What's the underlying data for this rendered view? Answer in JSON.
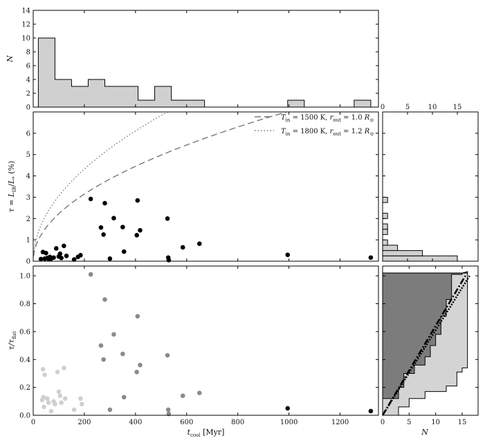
{
  "chart_data": [
    {
      "id": "hist_top",
      "type": "bar",
      "ylabel": "N",
      "ylim": [
        0,
        14
      ],
      "yticks": [
        0,
        2,
        4,
        6,
        8,
        10,
        12,
        14
      ],
      "bins": [
        {
          "x0": 20,
          "x1": 85,
          "n": 10
        },
        {
          "x0": 85,
          "x1": 150,
          "n": 4
        },
        {
          "x0": 150,
          "x1": 215,
          "n": 3
        },
        {
          "x0": 215,
          "x1": 280,
          "n": 4
        },
        {
          "x0": 280,
          "x1": 345,
          "n": 3
        },
        {
          "x0": 345,
          "x1": 410,
          "n": 3
        },
        {
          "x0": 410,
          "x1": 475,
          "n": 1
        },
        {
          "x0": 475,
          "x1": 540,
          "n": 3
        },
        {
          "x0": 540,
          "x1": 605,
          "n": 1
        },
        {
          "x0": 605,
          "x1": 670,
          "n": 1
        },
        {
          "x0": 670,
          "x1": 735,
          "n": 0
        },
        {
          "x0": 735,
          "x1": 800,
          "n": 0
        },
        {
          "x0": 800,
          "x1": 865,
          "n": 0
        },
        {
          "x0": 865,
          "x1": 930,
          "n": 0
        },
        {
          "x0": 930,
          "x1": 995,
          "n": 0
        },
        {
          "x0": 995,
          "x1": 1060,
          "n": 1
        },
        {
          "x0": 1060,
          "x1": 1125,
          "n": 0
        },
        {
          "x0": 1125,
          "x1": 1190,
          "n": 0
        },
        {
          "x0": 1190,
          "x1": 1255,
          "n": 0
        },
        {
          "x0": 1255,
          "x1": 1320,
          "n": 1
        }
      ],
      "fill": "#d0d0d0"
    },
    {
      "id": "scatter_mid",
      "type": "scatter",
      "xlim": [
        0,
        1350
      ],
      "ylim": [
        0,
        7
      ],
      "yticks": [
        0,
        1,
        2,
        3,
        4,
        5,
        6
      ],
      "ylabel": "τ = L_IR/L_* (%)",
      "ylabel_parts": {
        "lead": "τ = ",
        "L": "L",
        "IR": "IR",
        "star": "*",
        "tail": " (%)"
      },
      "points": [
        [
          30,
          0.1
        ],
        [
          38,
          0.43
        ],
        [
          45,
          0.12
        ],
        [
          50,
          0.38
        ],
        [
          55,
          0.15
        ],
        [
          60,
          0.1
        ],
        [
          65,
          0.2
        ],
        [
          70,
          0.12
        ],
        [
          80,
          0.17
        ],
        [
          90,
          0.6
        ],
        [
          100,
          0.22
        ],
        [
          105,
          0.35
        ],
        [
          110,
          0.15
        ],
        [
          120,
          0.72
        ],
        [
          130,
          0.25
        ],
        [
          160,
          0.08
        ],
        [
          175,
          0.2
        ],
        [
          185,
          0.28
        ],
        [
          225,
          2.92
        ],
        [
          265,
          1.58
        ],
        [
          275,
          1.25
        ],
        [
          280,
          2.72
        ],
        [
          300,
          0.12
        ],
        [
          315,
          2.02
        ],
        [
          350,
          1.6
        ],
        [
          355,
          0.45
        ],
        [
          405,
          1.22
        ],
        [
          408,
          2.85
        ],
        [
          418,
          1.45
        ],
        [
          525,
          2.0
        ],
        [
          528,
          0.17
        ],
        [
          530,
          0.05
        ],
        [
          585,
          0.65
        ],
        [
          650,
          0.82
        ],
        [
          995,
          0.3
        ],
        [
          1320,
          0.17
        ]
      ],
      "curves": [
        {
          "label_T": "1500",
          "label_r": "1.0",
          "dash": "9,5",
          "color": "#777777",
          "amp": 0.2225,
          "offset": 0.0
        },
        {
          "label_T": "1800",
          "label_r": "1.2",
          "dash": "1.5,3",
          "color": "#777777",
          "amp": 0.3055,
          "offset": 0.0
        }
      ],
      "legend_entries": [
        {
          "T": "1500",
          "r": "1.0"
        },
        {
          "T": "1800",
          "r": "1.2"
        }
      ]
    },
    {
      "id": "hist_right",
      "type": "bar",
      "orientation": "horizontal",
      "xlabel": "N",
      "xlim": [
        0,
        15
      ],
      "xticks": [
        0,
        5,
        10,
        15
      ],
      "bins_tau": [
        {
          "y0": 0.0,
          "y1": 0.25,
          "n": 15
        },
        {
          "y0": 0.25,
          "y1": 0.5,
          "n": 8
        },
        {
          "y0": 0.5,
          "y1": 0.75,
          "n": 3
        },
        {
          "y0": 0.75,
          "y1": 1.0,
          "n": 1
        },
        {
          "y0": 1.25,
          "y1": 1.5,
          "n": 1
        },
        {
          "y0": 1.5,
          "y1": 1.75,
          "n": 1
        },
        {
          "y0": 2.0,
          "y1": 2.25,
          "n": 1
        },
        {
          "y0": 2.75,
          "y1": 3.0,
          "n": 1
        }
      ],
      "fill": "#d0d0d0"
    },
    {
      "id": "scatter_bottom",
      "type": "scatter",
      "xlabel": "t_cool [Myr]",
      "xlabel_parts": {
        "t": "t",
        "cool": "cool",
        "tail": " [Myr]"
      },
      "ylabel": "τ/τ_flat",
      "xlim": [
        0,
        1350
      ],
      "xticks": [
        0,
        200,
        400,
        600,
        800,
        1000,
        1200
      ],
      "ylim": [
        0,
        1.07
      ],
      "yticks": [
        0.0,
        0.2,
        0.4,
        0.6,
        0.8,
        1.0
      ],
      "series": [
        {
          "name": "light",
          "color": "#cfcfcf",
          "points": [
            [
              38,
              0.33
            ],
            [
              42,
              0.06
            ],
            [
              45,
              0.29
            ],
            [
              55,
              0.12
            ],
            [
              60,
              0.09
            ],
            [
              70,
              0.03
            ],
            [
              80,
              0.1
            ],
            [
              85,
              0.08
            ],
            [
              95,
              0.31
            ],
            [
              100,
              0.17
            ],
            [
              105,
              0.14
            ],
            [
              110,
              0.09
            ],
            [
              120,
              0.34
            ],
            [
              125,
              0.12
            ],
            [
              160,
              0.04
            ],
            [
              185,
              0.12
            ],
            [
              190,
              0.08
            ],
            [
              35,
              0.11
            ],
            [
              40,
              0.13
            ]
          ]
        },
        {
          "name": "mid",
          "color": "#8a8a8a",
          "points": [
            [
              225,
              1.01
            ],
            [
              265,
              0.5
            ],
            [
              275,
              0.4
            ],
            [
              280,
              0.83
            ],
            [
              300,
              0.04
            ],
            [
              315,
              0.58
            ],
            [
              350,
              0.44
            ],
            [
              355,
              0.13
            ],
            [
              405,
              0.31
            ],
            [
              408,
              0.71
            ],
            [
              418,
              0.36
            ],
            [
              525,
              0.43
            ],
            [
              528,
              0.04
            ],
            [
              530,
              0.01
            ],
            [
              585,
              0.14
            ],
            [
              650,
              0.16
            ]
          ]
        },
        {
          "name": "dark",
          "color": "#111111",
          "points": [
            [
              995,
              0.05
            ],
            [
              1320,
              0.03
            ]
          ]
        }
      ]
    },
    {
      "id": "cdf_right",
      "type": "area",
      "xlabel": "N",
      "xlim": [
        0,
        18
      ],
      "xticks": [
        0,
        5,
        10,
        15
      ],
      "ylim": [
        0,
        1.07
      ],
      "dark_fill": "#7c7c7c",
      "light_fill": "#d4d4d4",
      "dark_step": [
        [
          0.0,
          0
        ],
        [
          0.12,
          3
        ],
        [
          0.2,
          4
        ],
        [
          0.3,
          6
        ],
        [
          0.36,
          8
        ],
        [
          0.42,
          9
        ],
        [
          0.5,
          10
        ],
        [
          0.58,
          11
        ],
        [
          0.71,
          12
        ],
        [
          0.83,
          13
        ],
        [
          1.01,
          15
        ],
        [
          1.03,
          16
        ]
      ],
      "light_step": [
        [
          0.0,
          3
        ],
        [
          0.06,
          5
        ],
        [
          0.12,
          8
        ],
        [
          0.17,
          12
        ],
        [
          0.21,
          14
        ],
        [
          0.31,
          15
        ],
        [
          0.34,
          16
        ],
        [
          1.03,
          16
        ]
      ],
      "lines": [
        {
          "dash": "9,3,2,3",
          "width": 2.6,
          "x_end": 15.6
        },
        {
          "dash": "2,2",
          "width": 2.6,
          "x_end": 16.4
        }
      ]
    }
  ]
}
